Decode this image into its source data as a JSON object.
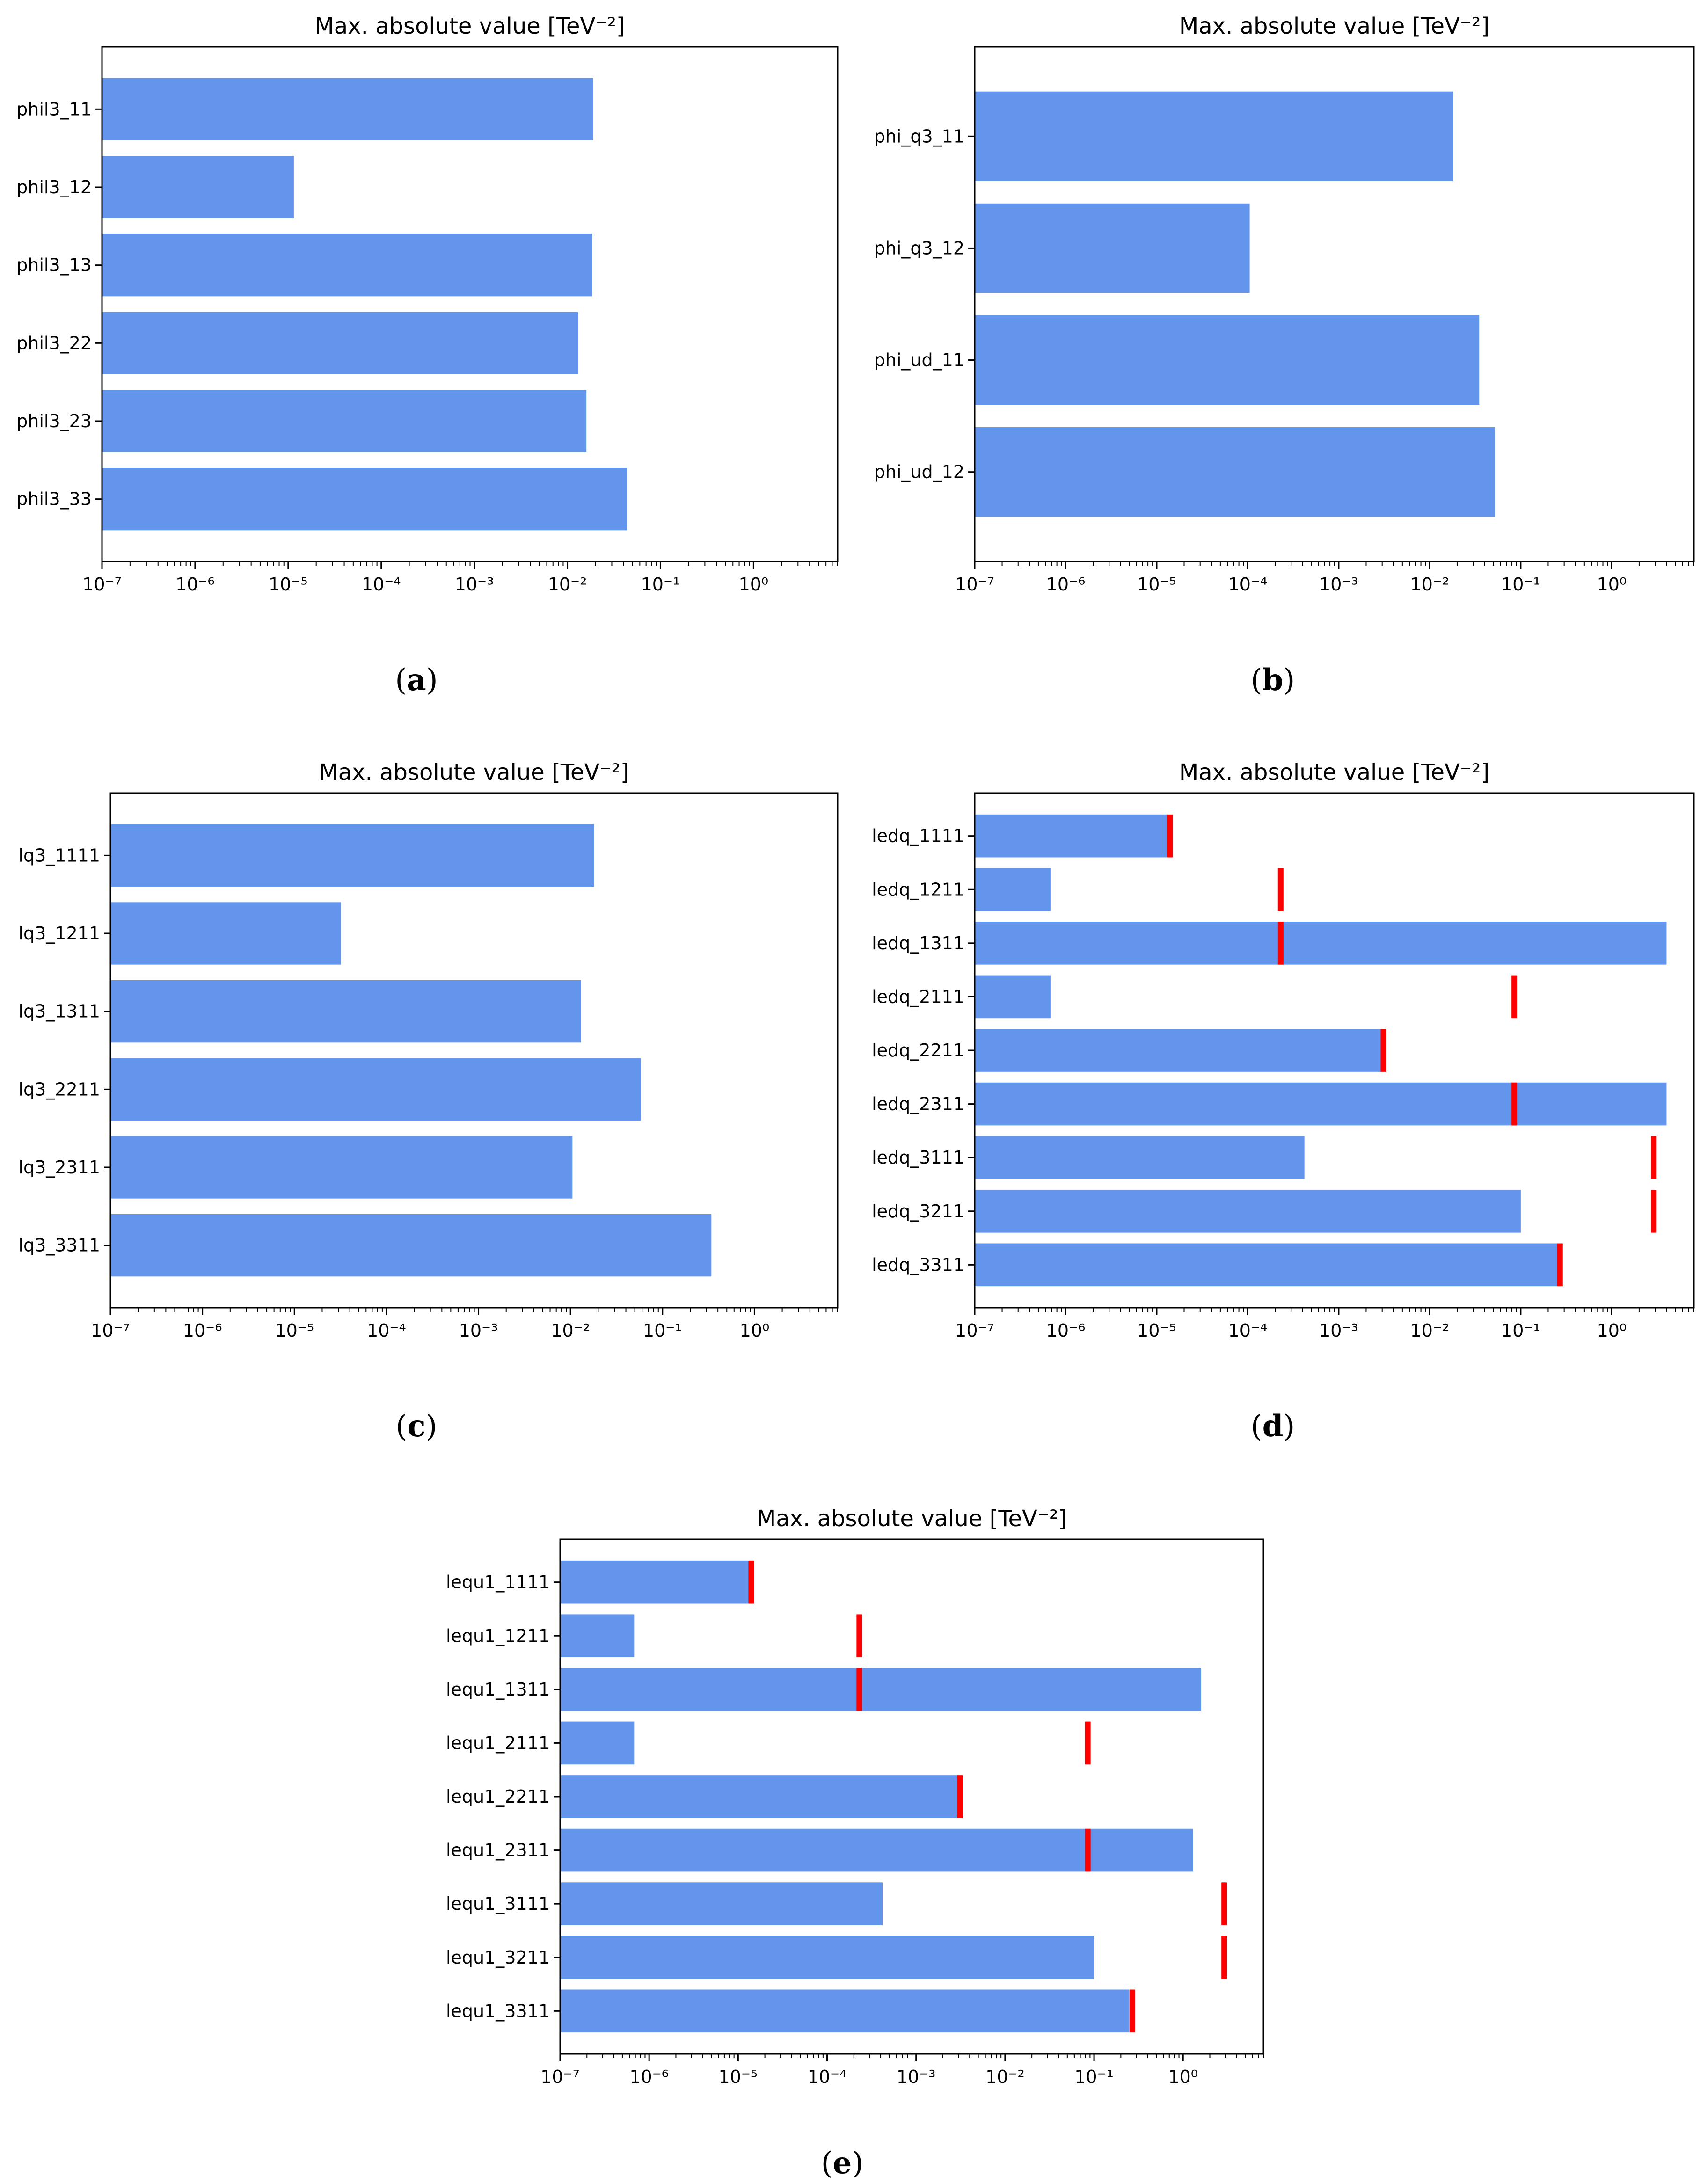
{
  "colors": {
    "bar": "#6495ed",
    "marker": "#ff0000",
    "axis": "#000000",
    "background": "#ffffff"
  },
  "chart_data": [
    {
      "id": "a",
      "type": "bar",
      "orientation": "horizontal",
      "scale": "log",
      "title": "Max. absolute value [TeV⁻²]",
      "caption_letter": "a",
      "xlim": [
        1e-07,
        8
      ],
      "x_ticks": [
        "10⁻⁷",
        "10⁻⁶",
        "10⁻⁵",
        "10⁻⁴",
        "10⁻³",
        "10⁻²",
        "10⁻¹",
        "10⁰"
      ],
      "categories": [
        "phil3_11",
        "phil3_12",
        "phil3_13",
        "phil3_22",
        "phil3_23",
        "phil3_33"
      ],
      "values": [
        0.019,
        1.15e-05,
        0.0185,
        0.013,
        0.016,
        0.044
      ]
    },
    {
      "id": "b",
      "type": "bar",
      "orientation": "horizontal",
      "scale": "log",
      "title": "Max. absolute value [TeV⁻²]",
      "caption_letter": "b",
      "xlim": [
        1e-07,
        8
      ],
      "x_ticks": [
        "10⁻⁷",
        "10⁻⁶",
        "10⁻⁵",
        "10⁻⁴",
        "10⁻³",
        "10⁻²",
        "10⁻¹",
        "10⁰"
      ],
      "categories": [
        "phi_q3_11",
        "phi_q3_12",
        "phi_ud_11",
        "phi_ud_12"
      ],
      "values": [
        0.018,
        0.000105,
        0.035,
        0.052
      ]
    },
    {
      "id": "c",
      "type": "bar",
      "orientation": "horizontal",
      "scale": "log",
      "title": "Max. absolute value [TeV⁻²]",
      "caption_letter": "c",
      "xlim": [
        1e-07,
        8
      ],
      "x_ticks": [
        "10⁻⁷",
        "10⁻⁶",
        "10⁻⁵",
        "10⁻⁴",
        "10⁻³",
        "10⁻²",
        "10⁻¹",
        "10⁰"
      ],
      "categories": [
        "lq3_1111",
        "lq3_1211",
        "lq3_1311",
        "lq3_2211",
        "lq3_2311",
        "lq3_3311"
      ],
      "values": [
        0.018,
        3.2e-05,
        0.013,
        0.058,
        0.0105,
        0.34
      ]
    },
    {
      "id": "d",
      "type": "bar",
      "orientation": "horizontal",
      "scale": "log",
      "title": "Max. absolute value [TeV⁻²]",
      "caption_letter": "d",
      "xlim": [
        1e-07,
        8
      ],
      "x_ticks": [
        "10⁻⁷",
        "10⁻⁶",
        "10⁻⁵",
        "10⁻⁴",
        "10⁻³",
        "10⁻²",
        "10⁻¹",
        "10⁰"
      ],
      "categories": [
        "ledq_1111",
        "ledq_1211",
        "ledq_1311",
        "ledq_2111",
        "ledq_2211",
        "ledq_2311",
        "ledq_3111",
        "ledq_3211",
        "ledq_3311"
      ],
      "values": [
        1.3e-05,
        6.8e-07,
        4.0,
        6.8e-07,
        0.003,
        4.0,
        0.00042,
        0.1,
        0.26
      ],
      "markers": [
        1.4e-05,
        0.00023,
        0.00023,
        0.085,
        0.0031,
        0.085,
        2.9,
        2.9,
        0.27
      ]
    },
    {
      "id": "e",
      "type": "bar",
      "orientation": "horizontal",
      "scale": "log",
      "title": "Max. absolute value [TeV⁻²]",
      "caption_letter": "e",
      "xlim": [
        1e-07,
        8
      ],
      "x_ticks": [
        "10⁻⁷",
        "10⁻⁶",
        "10⁻⁵",
        "10⁻⁴",
        "10⁻³",
        "10⁻²",
        "10⁻¹",
        "10⁰"
      ],
      "categories": [
        "lequ1_1111",
        "lequ1_1211",
        "lequ1_1311",
        "lequ1_2111",
        "lequ1_2211",
        "lequ1_2311",
        "lequ1_3111",
        "lequ1_3211",
        "lequ1_3311"
      ],
      "values": [
        1.3e-05,
        6.8e-07,
        1.6,
        6.8e-07,
        0.003,
        1.3,
        0.00042,
        0.1,
        0.25
      ],
      "markers": [
        1.4e-05,
        0.00023,
        0.00023,
        0.085,
        0.0031,
        0.085,
        2.9,
        2.9,
        0.27
      ]
    }
  ]
}
